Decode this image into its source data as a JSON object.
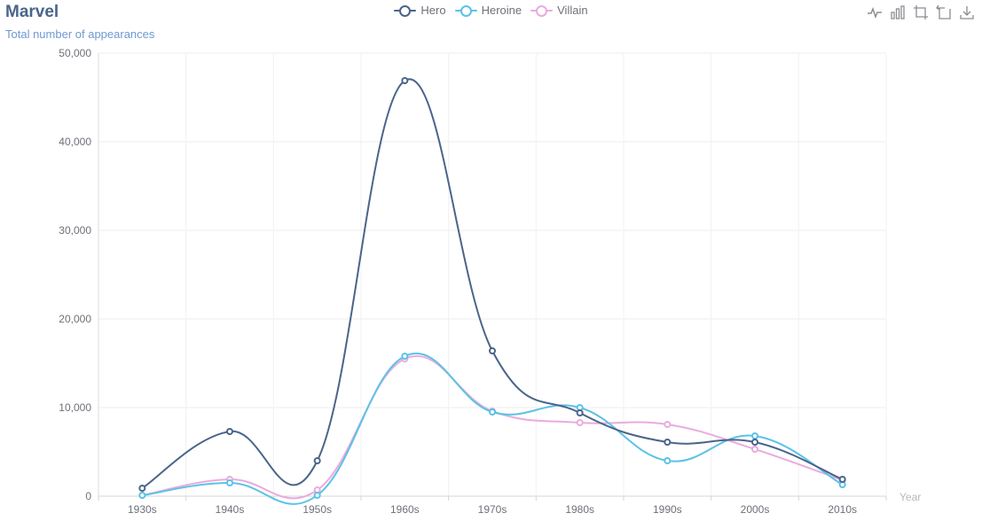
{
  "header": {
    "title": "Marvel",
    "subtitle": "Total number of appearances"
  },
  "toolbox": {
    "icons": [
      "line-chart-icon",
      "bar-chart-icon",
      "zoom-select-icon",
      "zoom-reset-icon",
      "download-icon"
    ]
  },
  "chart_data": {
    "type": "line",
    "smooth": true,
    "categories": [
      "1930s",
      "1940s",
      "1950s",
      "1960s",
      "1970s",
      "1980s",
      "1990s",
      "2000s",
      "2010s"
    ],
    "xlabel": "Year",
    "ylabel": "",
    "ylim": [
      0,
      50000
    ],
    "yticks": [
      0,
      10000,
      20000,
      30000,
      40000,
      50000
    ],
    "ytick_labels": [
      "0",
      "10,000",
      "20,000",
      "30,000",
      "40,000",
      "50,000"
    ],
    "grid": true,
    "legend_position": "top-center",
    "series": [
      {
        "name": "Hero",
        "color": "#4a658a",
        "values": [
          900,
          7300,
          4000,
          46900,
          16400,
          9400,
          6100,
          6100,
          1900
        ]
      },
      {
        "name": "Heroine",
        "color": "#5bc2e7",
        "values": [
          100,
          1500,
          100,
          15800,
          9500,
          10000,
          4000,
          6800,
          1300
        ]
      },
      {
        "name": "Villain",
        "color": "#eaabdd",
        "values": [
          100,
          1900,
          700,
          15500,
          9600,
          8300,
          8100,
          5300,
          1800
        ]
      }
    ]
  }
}
